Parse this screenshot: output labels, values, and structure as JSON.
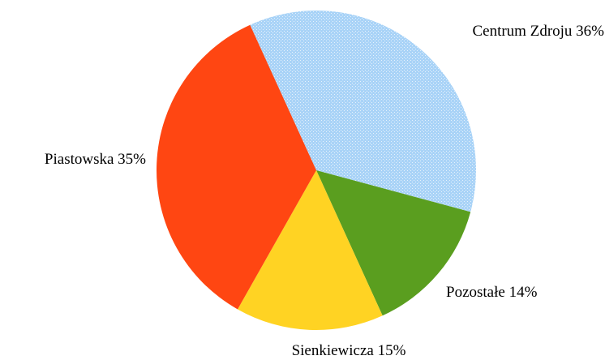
{
  "chart_data": {
    "type": "pie",
    "categories": [
      "Centrum Zdroju",
      "Pozostałe",
      "Sienkiewicza",
      "Piastowska"
    ],
    "values": [
      36,
      14,
      15,
      35
    ],
    "value_labels": [
      "36%",
      "14%",
      "15%",
      "35%"
    ],
    "colors": [
      "#a9d3f7",
      "#5a9e1f",
      "#ffd323",
      "#ff4612"
    ]
  }
}
